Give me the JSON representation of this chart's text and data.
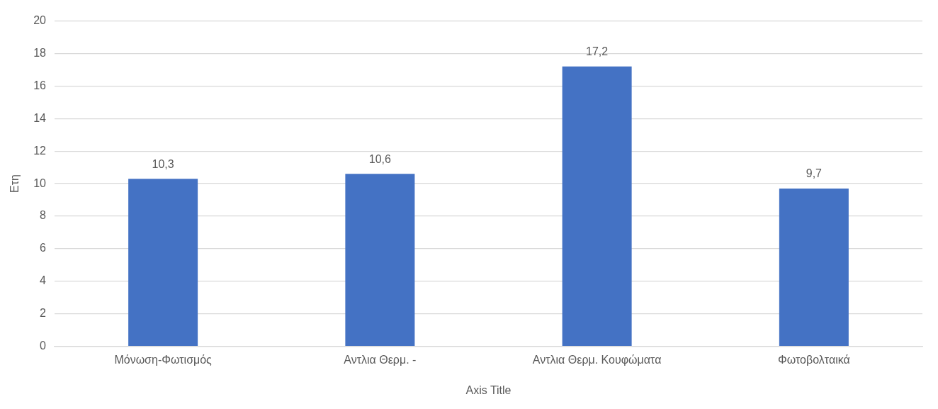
{
  "chart_data": {
    "type": "bar",
    "xlabel": "Axis Title",
    "ylabel": "Ετη",
    "categories": [
      "Μόνωση-Φωτισμός",
      "Αντλια Θερμ. -",
      "Αντλια Θερμ. Κουφώματα",
      "Φωτοβολταικά"
    ],
    "values": [
      10.3,
      10.6,
      17.2,
      9.7
    ],
    "value_labels": [
      "10,3",
      "10,6",
      "17,2",
      "9,7"
    ],
    "color": "#4472c4",
    "ylim": [
      0,
      20
    ],
    "yticks": [
      0,
      2,
      4,
      6,
      8,
      10,
      12,
      14,
      16,
      18,
      20
    ],
    "grid": "y",
    "legend": false
  }
}
